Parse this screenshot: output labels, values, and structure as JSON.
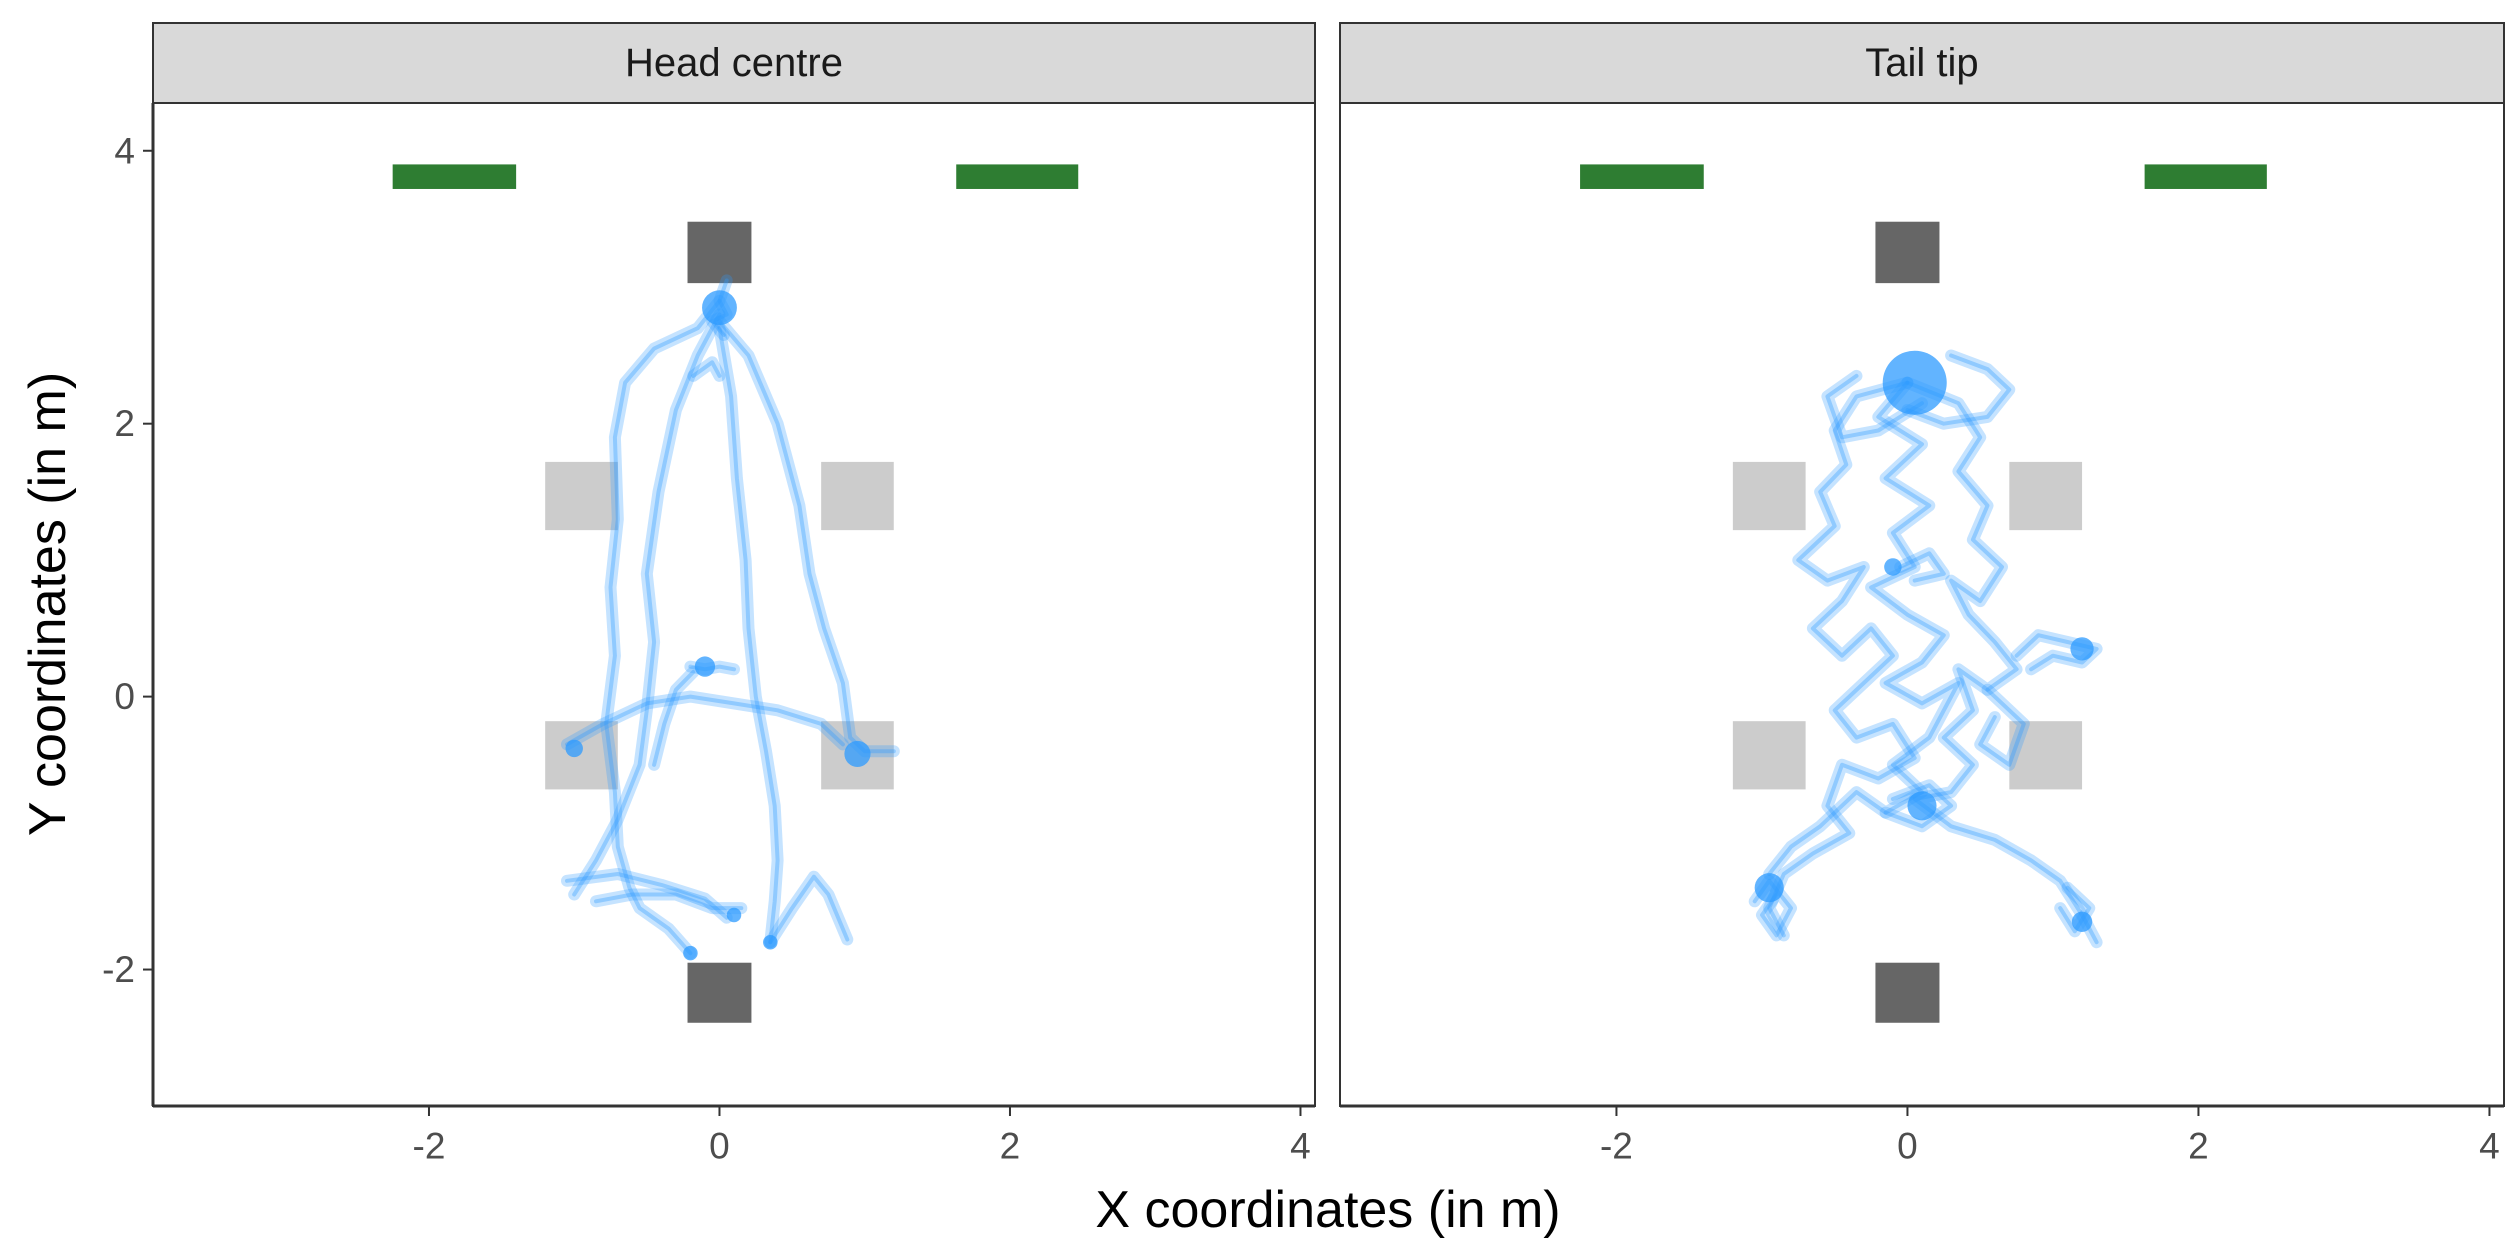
{
  "colors": {
    "strip_fill": "#d9d9d9",
    "panel_border": "#333333",
    "bar_green": "#2e7d32",
    "box_dark": "#666666",
    "box_light": "#cccccc",
    "track": "#2e9bff",
    "tick": "#333333"
  },
  "chart_data": {
    "type": "scatter",
    "xlabel": "X coordinates (in m)",
    "ylabel": "Y coordinates (in m)",
    "xlim": [
      -3.9,
      4.1
    ],
    "ylim": [
      -3.0,
      4.35
    ],
    "xticks": [
      -2,
      0,
      2,
      4
    ],
    "yticks": [
      -2,
      0,
      2,
      4
    ],
    "xtick_labels": [
      "-2",
      "0",
      "2",
      "4"
    ],
    "ytick_labels": [
      "-2",
      "0",
      "2",
      "4"
    ],
    "grid": false,
    "static_shapes": {
      "green_bars": [
        {
          "x0": -2.25,
          "x1": -1.4,
          "y0": 3.72,
          "y1": 3.9
        },
        {
          "x0": 1.63,
          "x1": 2.47,
          "y0": 3.72,
          "y1": 3.9
        }
      ],
      "dark_boxes": [
        {
          "x0": -0.22,
          "x1": 0.22,
          "y0": 3.03,
          "y1": 3.48
        },
        {
          "x0": -0.22,
          "x1": 0.22,
          "y0": -2.39,
          "y1": -1.95
        }
      ],
      "light_boxes": [
        {
          "x0": -1.2,
          "x1": -0.7,
          "y0": 1.22,
          "y1": 1.72
        },
        {
          "x0": 0.7,
          "x1": 1.2,
          "y0": 1.22,
          "y1": 1.72
        },
        {
          "x0": -1.2,
          "x1": -0.7,
          "y0": -0.68,
          "y1": -0.18
        },
        {
          "x0": 0.7,
          "x1": 1.2,
          "y0": -0.68,
          "y1": -0.18
        }
      ]
    },
    "panels": [
      {
        "strip": "Head centre",
        "tracks": [
          [
            [
              0.0,
              2.9
            ],
            [
              -0.15,
              2.7
            ],
            [
              -0.45,
              2.55
            ],
            [
              -0.65,
              2.3
            ],
            [
              -0.72,
              1.9
            ],
            [
              -0.7,
              1.3
            ],
            [
              -0.75,
              0.8
            ],
            [
              -0.72,
              0.3
            ],
            [
              -0.78,
              -0.2
            ],
            [
              -0.72,
              -0.7
            ],
            [
              -0.7,
              -1.1
            ],
            [
              -0.62,
              -1.4
            ],
            [
              -0.55,
              -1.55
            ],
            [
              -0.35,
              -1.7
            ],
            [
              -0.2,
              -1.88
            ]
          ],
          [
            [
              0.0,
              2.8
            ],
            [
              -0.15,
              2.5
            ],
            [
              -0.3,
              2.1
            ],
            [
              -0.42,
              1.5
            ],
            [
              -0.5,
              0.9
            ],
            [
              -0.45,
              0.4
            ],
            [
              -0.5,
              -0.1
            ],
            [
              -0.55,
              -0.5
            ],
            [
              -0.7,
              -0.9
            ],
            [
              -0.85,
              -1.2
            ],
            [
              -1.0,
              -1.45
            ]
          ],
          [
            [
              0.0,
              2.7
            ],
            [
              0.08,
              2.2
            ],
            [
              0.12,
              1.6
            ],
            [
              0.18,
              1.0
            ],
            [
              0.2,
              0.5
            ],
            [
              0.25,
              0.0
            ],
            [
              0.32,
              -0.4
            ],
            [
              0.38,
              -0.8
            ],
            [
              0.4,
              -1.2
            ],
            [
              0.38,
              -1.5
            ],
            [
              0.35,
              -1.8
            ]
          ],
          [
            [
              0.0,
              2.75
            ],
            [
              0.2,
              2.5
            ],
            [
              0.4,
              2.0
            ],
            [
              0.55,
              1.4
            ],
            [
              0.62,
              0.9
            ],
            [
              0.72,
              0.5
            ],
            [
              0.85,
              0.1
            ],
            [
              0.9,
              -0.3
            ],
            [
              1.0,
              -0.4
            ],
            [
              1.2,
              -0.4
            ]
          ],
          [
            [
              -1.05,
              -0.35
            ],
            [
              -0.8,
              -0.2
            ],
            [
              -0.5,
              -0.05
            ],
            [
              -0.2,
              0.0
            ],
            [
              0.1,
              -0.05
            ],
            [
              0.4,
              -0.1
            ],
            [
              0.7,
              -0.2
            ],
            [
              0.85,
              -0.35
            ]
          ],
          [
            [
              -0.45,
              -0.5
            ],
            [
              -0.38,
              -0.2
            ],
            [
              -0.3,
              0.05
            ],
            [
              -0.18,
              0.18
            ]
          ],
          [
            [
              0.1,
              0.2
            ],
            [
              0.0,
              0.22
            ],
            [
              -0.1,
              0.2
            ],
            [
              -0.2,
              0.22
            ]
          ],
          [
            [
              -0.85,
              -1.5
            ],
            [
              -0.6,
              -1.45
            ],
            [
              -0.3,
              -1.45
            ],
            [
              -0.05,
              -1.55
            ],
            [
              0.15,
              -1.55
            ]
          ],
          [
            [
              -1.05,
              -1.35
            ],
            [
              -0.7,
              -1.3
            ],
            [
              -0.4,
              -1.38
            ],
            [
              -0.1,
              -1.48
            ],
            [
              0.05,
              -1.62
            ]
          ],
          [
            [
              0.35,
              -1.8
            ],
            [
              0.5,
              -1.55
            ],
            [
              0.65,
              -1.32
            ],
            [
              0.75,
              -1.45
            ],
            [
              0.88,
              -1.78
            ]
          ],
          [
            [
              0.05,
              3.05
            ],
            [
              0.0,
              2.9
            ],
            [
              0.05,
              2.8
            ],
            [
              -0.05,
              2.75
            ],
            [
              0.03,
              2.65
            ]
          ],
          [
            [
              -0.18,
              2.35
            ],
            [
              -0.05,
              2.45
            ],
            [
              0.0,
              2.35
            ]
          ]
        ],
        "clusters": [
          {
            "x": 0.0,
            "y": 2.85,
            "r": 0.12
          },
          {
            "x": -0.1,
            "y": 0.22,
            "r": 0.07
          },
          {
            "x": -1.0,
            "y": -0.38,
            "r": 0.06
          },
          {
            "x": 0.95,
            "y": -0.42,
            "r": 0.09
          },
          {
            "x": -0.2,
            "y": -1.88,
            "r": 0.05
          },
          {
            "x": 0.35,
            "y": -1.8,
            "r": 0.05
          },
          {
            "x": 0.1,
            "y": -1.6,
            "r": 0.05
          }
        ]
      },
      {
        "strip": "Tail tip",
        "tracks": [
          [
            [
              0.0,
              2.3
            ],
            [
              -0.35,
              2.2
            ],
            [
              -0.5,
              1.95
            ],
            [
              -0.42,
              1.7
            ],
            [
              -0.6,
              1.5
            ],
            [
              -0.5,
              1.25
            ],
            [
              -0.75,
              1.0
            ],
            [
              -0.55,
              0.85
            ],
            [
              -0.3,
              0.95
            ],
            [
              -0.45,
              0.7
            ],
            [
              -0.65,
              0.5
            ],
            [
              -0.45,
              0.3
            ],
            [
              -0.25,
              0.5
            ],
            [
              -0.1,
              0.3
            ],
            [
              -0.3,
              0.1
            ],
            [
              -0.5,
              -0.1
            ],
            [
              -0.35,
              -0.3
            ],
            [
              -0.1,
              -0.2
            ],
            [
              0.05,
              -0.45
            ],
            [
              -0.2,
              -0.6
            ],
            [
              -0.45,
              -0.5
            ],
            [
              -0.55,
              -0.8
            ],
            [
              -0.4,
              -1.0
            ],
            [
              -0.65,
              -1.15
            ],
            [
              -0.85,
              -1.3
            ],
            [
              -0.95,
              -1.55
            ],
            [
              -0.85,
              -1.75
            ]
          ],
          [
            [
              0.0,
              2.3
            ],
            [
              0.35,
              2.15
            ],
            [
              0.5,
              1.9
            ],
            [
              0.35,
              1.65
            ],
            [
              0.55,
              1.4
            ],
            [
              0.45,
              1.15
            ],
            [
              0.65,
              0.95
            ],
            [
              0.5,
              0.7
            ],
            [
              0.3,
              0.85
            ],
            [
              0.42,
              0.6
            ],
            [
              0.6,
              0.4
            ],
            [
              0.75,
              0.2
            ],
            [
              0.55,
              0.05
            ],
            [
              0.35,
              0.2
            ],
            [
              0.45,
              -0.1
            ],
            [
              0.25,
              -0.3
            ],
            [
              0.45,
              -0.5
            ],
            [
              0.3,
              -0.7
            ],
            [
              0.05,
              -0.75
            ],
            [
              0.3,
              -0.95
            ],
            [
              0.6,
              -1.05
            ],
            [
              0.85,
              -1.2
            ],
            [
              1.05,
              -1.35
            ],
            [
              1.2,
              -1.6
            ],
            [
              1.3,
              -1.8
            ]
          ],
          [
            [
              0.0,
              2.3
            ],
            [
              -0.2,
              2.05
            ],
            [
              0.1,
              1.85
            ],
            [
              -0.15,
              1.6
            ],
            [
              0.15,
              1.4
            ],
            [
              -0.1,
              1.2
            ],
            [
              0.05,
              0.95
            ],
            [
              -0.25,
              0.8
            ],
            [
              0.0,
              0.6
            ],
            [
              0.25,
              0.45
            ],
            [
              0.1,
              0.25
            ],
            [
              -0.15,
              0.1
            ],
            [
              0.1,
              -0.05
            ],
            [
              0.35,
              0.1
            ],
            [
              0.15,
              -0.3
            ],
            [
              -0.1,
              -0.5
            ],
            [
              0.1,
              -0.7
            ],
            [
              -0.15,
              -0.85
            ],
            [
              -0.35,
              -0.7
            ],
            [
              -0.6,
              -0.95
            ],
            [
              -0.8,
              -1.1
            ],
            [
              -0.95,
              -1.3
            ]
          ],
          [
            [
              0.3,
              2.5
            ],
            [
              0.55,
              2.4
            ],
            [
              0.7,
              2.25
            ],
            [
              0.55,
              2.05
            ],
            [
              0.25,
              2.0
            ],
            [
              0.0,
              2.1
            ]
          ],
          [
            [
              -0.35,
              2.35
            ],
            [
              -0.55,
              2.2
            ],
            [
              -0.45,
              1.9
            ],
            [
              -0.2,
              1.95
            ],
            [
              0.1,
              2.15
            ]
          ],
          [
            [
              0.75,
              0.3
            ],
            [
              0.9,
              0.45
            ],
            [
              1.1,
              0.4
            ],
            [
              1.3,
              0.35
            ],
            [
              1.2,
              0.25
            ],
            [
              1.0,
              0.3
            ],
            [
              0.85,
              0.2
            ]
          ],
          [
            [
              0.55,
              0.05
            ],
            [
              0.8,
              -0.2
            ],
            [
              0.7,
              -0.5
            ],
            [
              0.5,
              -0.35
            ],
            [
              0.6,
              -0.15
            ]
          ],
          [
            [
              -0.05,
              0.95
            ],
            [
              0.15,
              1.05
            ],
            [
              0.25,
              0.9
            ],
            [
              0.05,
              0.85
            ]
          ],
          [
            [
              -0.9,
              -1.45
            ],
            [
              -1.0,
              -1.6
            ],
            [
              -0.9,
              -1.75
            ],
            [
              -0.8,
              -1.55
            ],
            [
              -0.95,
              -1.35
            ],
            [
              -1.05,
              -1.5
            ]
          ],
          [
            [
              1.1,
              -1.4
            ],
            [
              1.25,
              -1.55
            ],
            [
              1.15,
              -1.72
            ],
            [
              1.05,
              -1.55
            ]
          ],
          [
            [
              -0.1,
              -0.75
            ],
            [
              0.15,
              -0.65
            ],
            [
              0.3,
              -0.8
            ],
            [
              0.1,
              -0.95
            ],
            [
              -0.15,
              -0.85
            ]
          ]
        ],
        "clusters": [
          {
            "x": 0.05,
            "y": 2.3,
            "r": 0.22
          },
          {
            "x": -0.1,
            "y": 0.95,
            "r": 0.06
          },
          {
            "x": 1.2,
            "y": 0.35,
            "r": 0.08
          },
          {
            "x": 0.1,
            "y": -0.8,
            "r": 0.1
          },
          {
            "x": -0.95,
            "y": -1.4,
            "r": 0.1
          },
          {
            "x": 1.2,
            "y": -1.65,
            "r": 0.07
          }
        ]
      }
    ]
  }
}
